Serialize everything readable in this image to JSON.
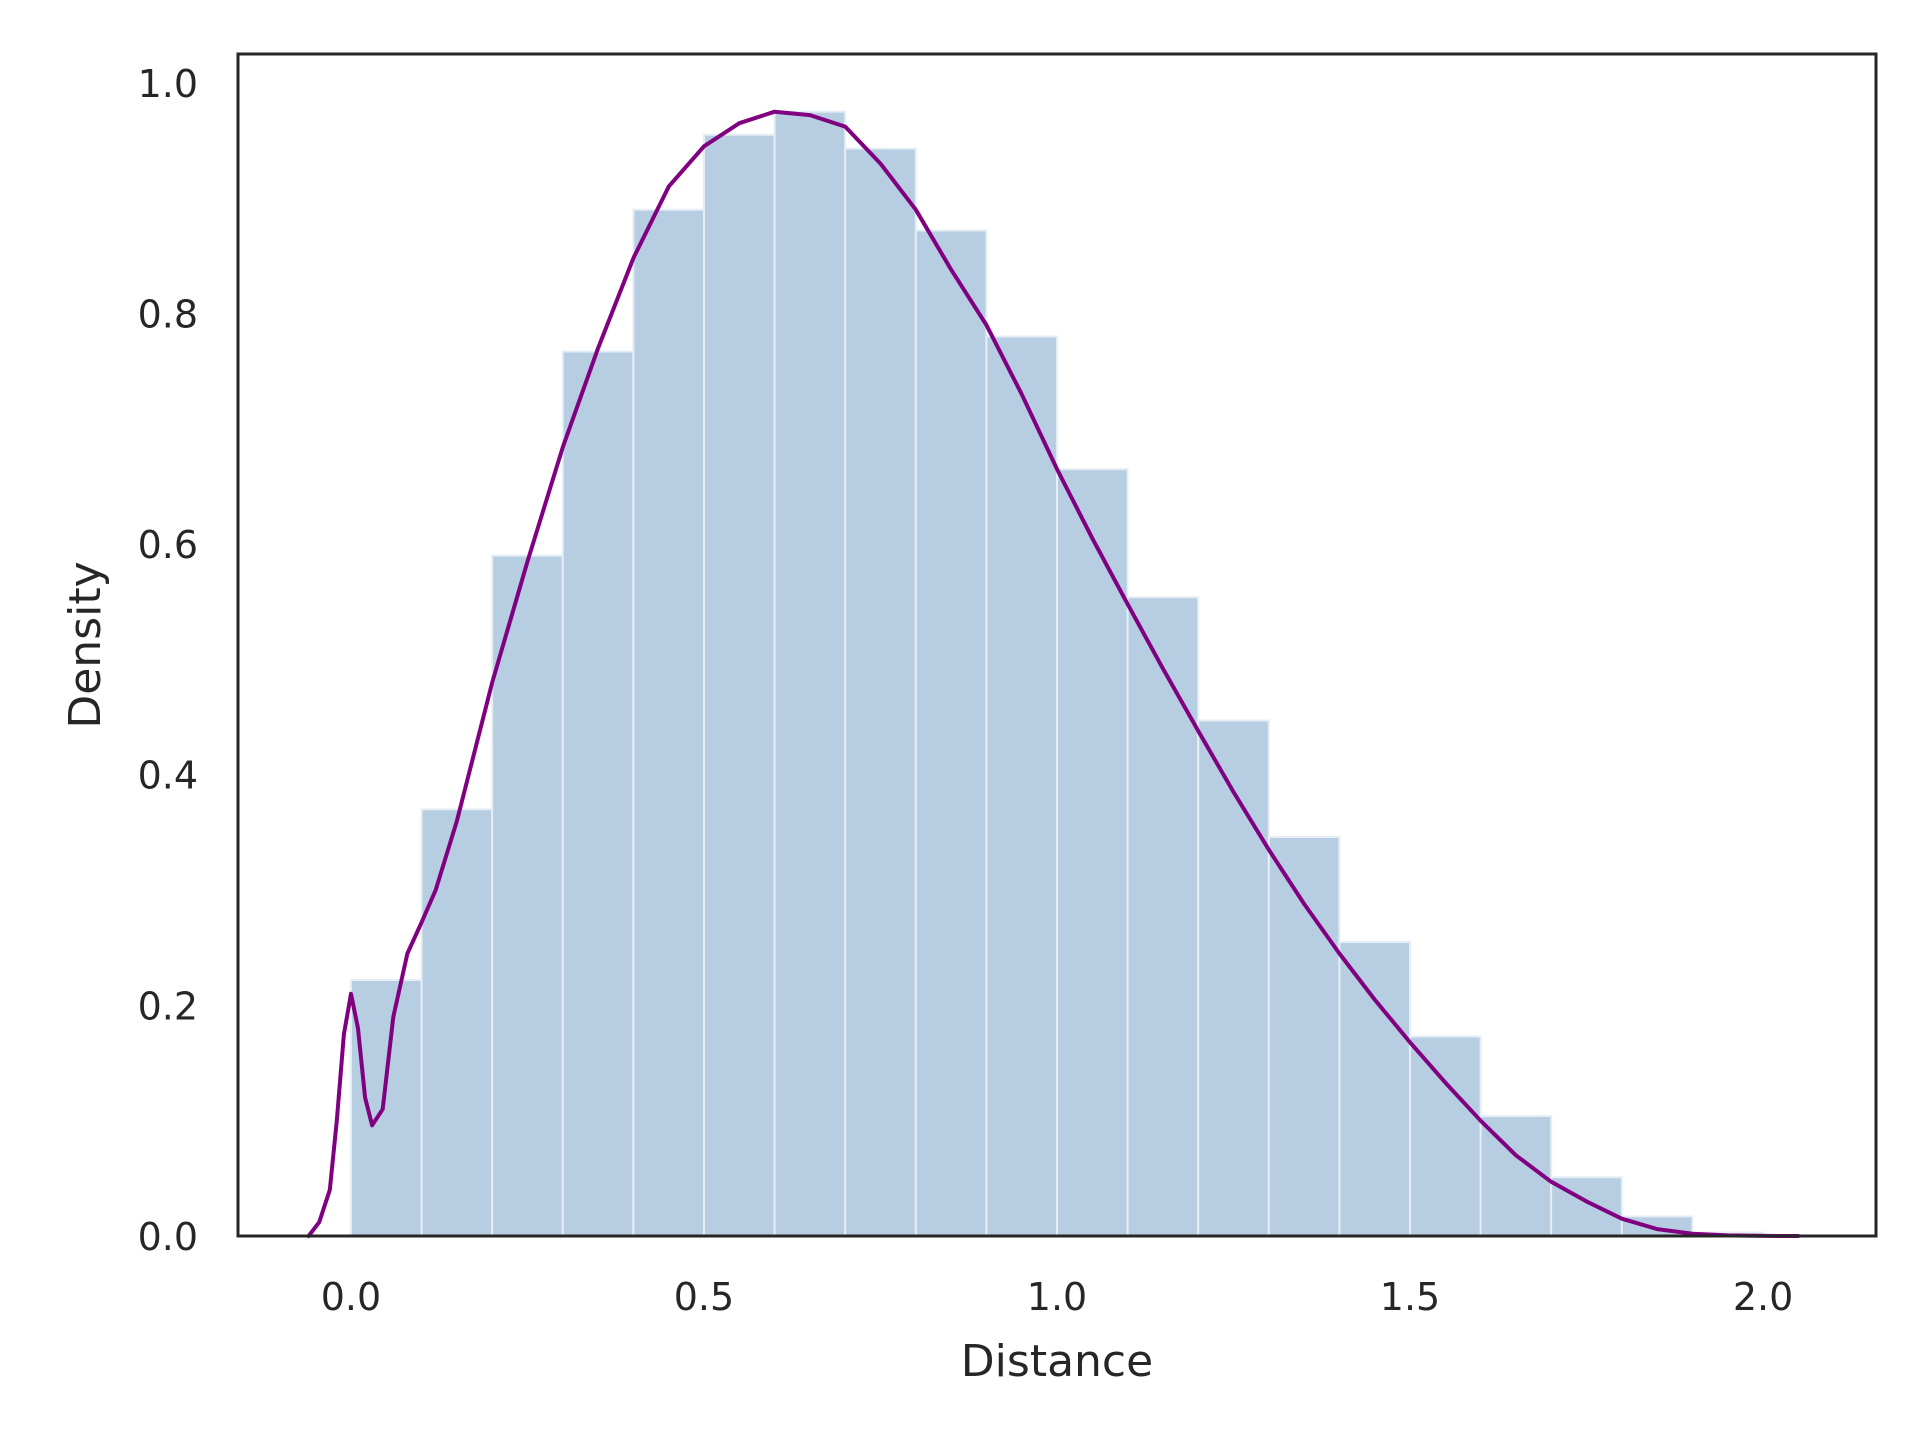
{
  "chart_data": {
    "type": "bar",
    "title": "",
    "xlabel": "Distance",
    "ylabel": "Density",
    "xlim": [
      -0.16,
      2.16
    ],
    "ylim": [
      0.0,
      1.025
    ],
    "grid": false,
    "x_ticks": [
      0.0,
      0.5,
      1.0,
      1.5,
      2.0
    ],
    "x_tick_labels": [
      "0.0",
      "0.5",
      "1.0",
      "1.5",
      "2.0"
    ],
    "y_ticks": [
      0.0,
      0.2,
      0.4,
      0.6,
      0.8,
      1.0
    ],
    "y_tick_labels": [
      "0.0",
      "0.2",
      "0.4",
      "0.6",
      "0.8",
      "1.0"
    ],
    "histogram": {
      "bin_edges": [
        0.0,
        0.1,
        0.2,
        0.3,
        0.4,
        0.5,
        0.6,
        0.7,
        0.8,
        0.9,
        1.0,
        1.1,
        1.2,
        1.3,
        1.4,
        1.5,
        1.6,
        1.7,
        1.8,
        1.9,
        2.0
      ],
      "values": [
        0.222,
        0.37,
        0.59,
        0.767,
        0.89,
        0.955,
        0.975,
        0.943,
        0.872,
        0.78,
        0.665,
        0.554,
        0.447,
        0.346,
        0.255,
        0.173,
        0.104,
        0.051,
        0.017,
        0.003
      ],
      "color": "#b6cde2",
      "edge_color": "#e6eef5"
    },
    "kde": {
      "color": "#800080",
      "x": [
        -0.06,
        -0.045,
        -0.03,
        -0.02,
        -0.01,
        0.0,
        0.01,
        0.02,
        0.03,
        0.045,
        0.06,
        0.08,
        0.1,
        0.12,
        0.15,
        0.2,
        0.25,
        0.3,
        0.35,
        0.4,
        0.45,
        0.5,
        0.55,
        0.6,
        0.65,
        0.7,
        0.75,
        0.8,
        0.85,
        0.9,
        0.95,
        1.0,
        1.05,
        1.1,
        1.15,
        1.2,
        1.25,
        1.3,
        1.35,
        1.4,
        1.45,
        1.5,
        1.55,
        1.6,
        1.65,
        1.7,
        1.75,
        1.8,
        1.85,
        1.9,
        1.95,
        2.0,
        2.05
      ],
      "y": [
        0.0,
        0.012,
        0.04,
        0.1,
        0.175,
        0.21,
        0.18,
        0.12,
        0.096,
        0.11,
        0.19,
        0.245,
        0.272,
        0.3,
        0.36,
        0.48,
        0.585,
        0.684,
        0.77,
        0.848,
        0.91,
        0.945,
        0.965,
        0.975,
        0.972,
        0.962,
        0.93,
        0.89,
        0.838,
        0.79,
        0.73,
        0.665,
        0.605,
        0.548,
        0.492,
        0.438,
        0.385,
        0.335,
        0.288,
        0.245,
        0.205,
        0.168,
        0.133,
        0.1,
        0.07,
        0.047,
        0.03,
        0.015,
        0.006,
        0.002,
        0.0005,
        0.0001,
        0.0
      ]
    }
  }
}
